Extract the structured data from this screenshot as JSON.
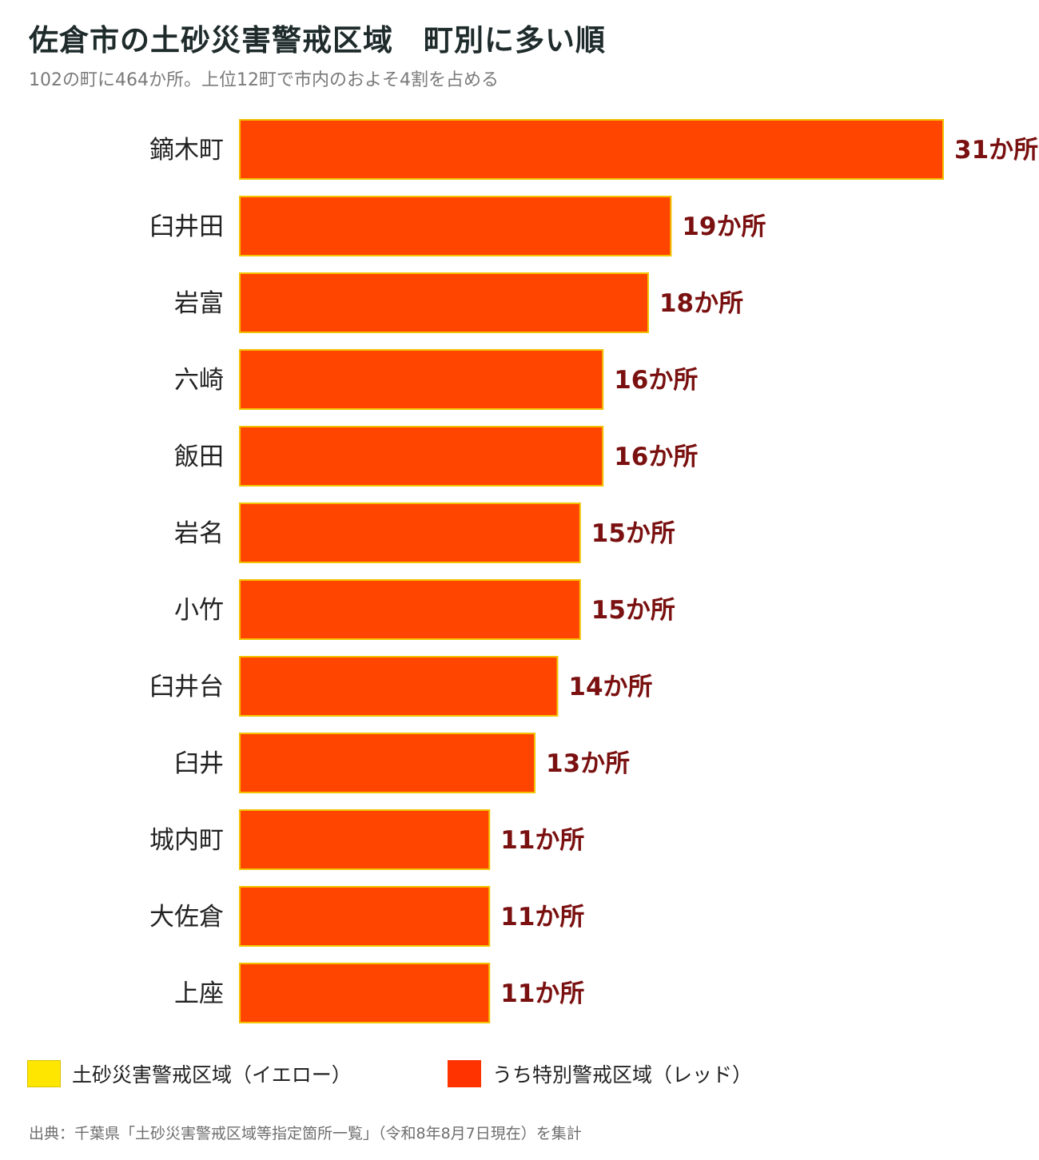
{
  "title": "佐倉市の土砂災害警戒区域　町別に多い順",
  "subtitle": "102の町に464か所。上位12町で市内のおよそ4割を占める",
  "value_suffix": "か所",
  "colors": {
    "bar_fill": "#FF4500",
    "bar_border": "#F2C200",
    "value_label": "#7A1010",
    "category_label": "#222222",
    "yellow": "#FFE600",
    "red": "#FF3300"
  },
  "legend": [
    {
      "label": "土砂災害警戒区域（イエロー）",
      "color": "#FFE600"
    },
    {
      "label": "うち特別警戒区域（レッド）",
      "color": "#FF3300"
    }
  ],
  "source": "出典：千葉県「土砂災害警戒区域等指定箇所一覧」（令和8年8月7日現在）を集計",
  "chart_data": {
    "type": "bar",
    "orientation": "horizontal",
    "categories": [
      "鏑木町",
      "臼井田",
      "岩富",
      "六崎",
      "飯田",
      "岩名",
      "小竹",
      "臼井台",
      "臼井",
      "城内町",
      "大佐倉",
      "上座"
    ],
    "series": [
      {
        "values": [
          31,
          19,
          18,
          16,
          16,
          15,
          15,
          14,
          13,
          11,
          11,
          11
        ]
      }
    ],
    "data_labels": [
      "31か所",
      "19か所",
      "18か所",
      "16か所",
      "16か所",
      "15か所",
      "15か所",
      "14か所",
      "13か所",
      "11か所",
      "11か所",
      "11か所"
    ],
    "xlim": [
      0,
      31
    ],
    "grid": false,
    "legend_position": "bottom"
  }
}
